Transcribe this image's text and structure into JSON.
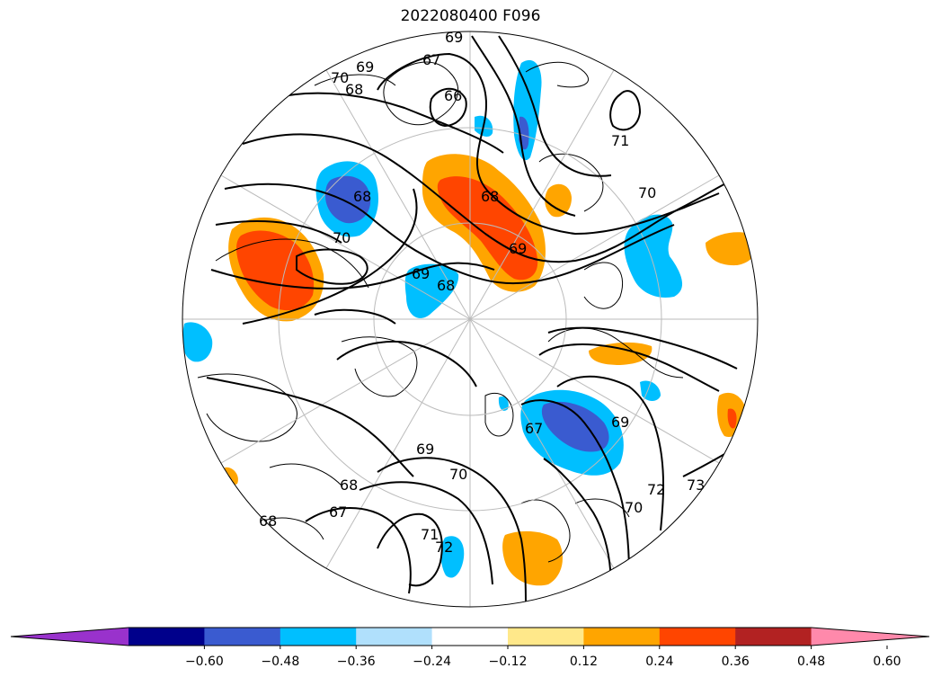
{
  "title": "2022080400 F096",
  "colorbar": {
    "colors": [
      "#9932cc",
      "#00008b",
      "#3a5bd0",
      "#00bfff",
      "#b0e0fc",
      "#ffffff",
      "#ffe88a",
      "#ffa500",
      "#ff4500",
      "#b22222",
      "#ff89ab"
    ],
    "ticks": [
      "−0.60",
      "−0.48",
      "−0.36",
      "−0.24",
      "−0.12",
      "0.12",
      "0.24",
      "0.36",
      "0.48",
      "0.60"
    ]
  },
  "contour_labels": [
    "69",
    "67",
    "66",
    "70",
    "69",
    "68",
    "71",
    "70",
    "68",
    "70",
    "69",
    "68",
    "69",
    "68",
    "67",
    "69",
    "69",
    "70",
    "68",
    "67",
    "71",
    "72",
    "72",
    "70",
    "73",
    "68"
  ],
  "map": {
    "projection": "north-polar-stereographic",
    "field_contours": "geopotential height (black lines)",
    "shaded_field": "anomaly (colorbar)"
  }
}
